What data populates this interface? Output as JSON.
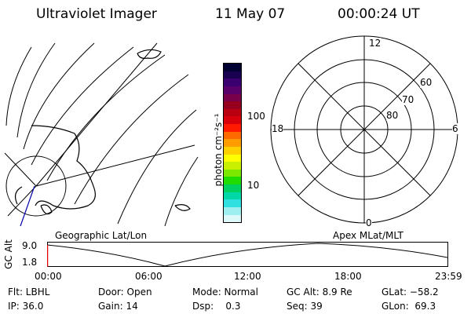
{
  "header": {
    "title": "Ultraviolet Imager",
    "date": "11 May 07",
    "time": "00:00:24 UT"
  },
  "left_panel": {
    "caption": "Geographic Lat/Lon"
  },
  "colorbar": {
    "unit_label": "photon cm⁻²s⁻¹",
    "tick_labels": [
      "100",
      "10"
    ],
    "colors": [
      "#000033",
      "#1a0050",
      "#3b0070",
      "#5a006a",
      "#78004a",
      "#96001e",
      "#b80010",
      "#d8000a",
      "#ff1a00",
      "#ff6a00",
      "#ff9c00",
      "#ffd000",
      "#ffff00",
      "#c8f000",
      "#7ce800",
      "#20dd00",
      "#00d060",
      "#00d8a8",
      "#30e0e0",
      "#9ef0f0",
      "#dcf8f8"
    ]
  },
  "polar_plot": {
    "caption": "Apex MLat/MLT",
    "mlt_labels": {
      "top": "12",
      "bottom": "0",
      "left": "18",
      "right": "6"
    },
    "lat_labels": [
      "60",
      "70",
      "80"
    ]
  },
  "altitude_strip": {
    "axis_label": "GC Alt",
    "y_ticks": [
      "9.0",
      "1.8"
    ],
    "x_ticks": [
      "00:00",
      "06:00",
      "12:00",
      "18:00",
      "23:59"
    ]
  },
  "info": {
    "flt": "Flt: LBHL",
    "ip": "IP: 36.0",
    "door": "Door: Open",
    "gain": "Gain: 14",
    "mode": "Mode: Normal",
    "dsp": "Dsp:    0.3",
    "gcalt": "GC Alt: 8.9 Re",
    "seq": "Seq: 39",
    "glat": "GLat: −58.2",
    "glon": "GLon:  69.3"
  }
}
